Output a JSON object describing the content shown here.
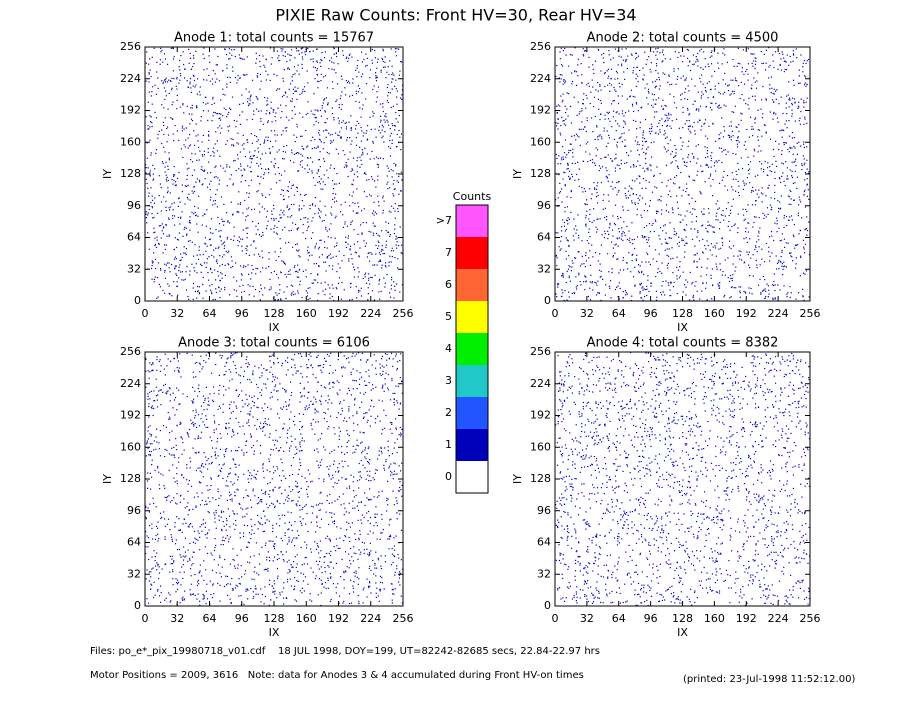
{
  "title": "PIXIE Raw Counts:  Front HV=30, Rear HV=34",
  "chart_data": [
    {
      "type": "heatmap",
      "title": "Anode 1: total counts = 15767",
      "xlabel": "IX",
      "ylabel": "IY",
      "color": "#0000cc",
      "xlim": [
        0,
        256
      ],
      "ylim": [
        0,
        256
      ],
      "xticks": [
        0,
        32,
        64,
        96,
        128,
        160,
        192,
        224,
        256
      ],
      "yticks": [
        0,
        32,
        64,
        96,
        128,
        160,
        192,
        224,
        256
      ]
    },
    {
      "type": "heatmap",
      "title": "Anode 2: total counts = 4500",
      "xlabel": "IX",
      "ylabel": "IY",
      "color": "#0000cc",
      "xlim": [
        0,
        256
      ],
      "ylim": [
        0,
        256
      ],
      "xticks": [
        0,
        32,
        64,
        96,
        128,
        160,
        192,
        224,
        256
      ],
      "yticks": [
        0,
        32,
        64,
        96,
        128,
        160,
        192,
        224,
        256
      ]
    },
    {
      "type": "heatmap",
      "title": "Anode 3: total counts = 6106",
      "xlabel": "IX",
      "ylabel": "IY",
      "color": "#0000cc",
      "xlim": [
        0,
        256
      ],
      "ylim": [
        0,
        256
      ],
      "xticks": [
        0,
        32,
        64,
        96,
        128,
        160,
        192,
        224,
        256
      ],
      "yticks": [
        0,
        32,
        64,
        96,
        128,
        160,
        192,
        224,
        256
      ]
    },
    {
      "type": "heatmap",
      "title": "Anode 4: total counts = 8382",
      "xlabel": "IX",
      "ylabel": "IY",
      "color": "#0000cc",
      "xlim": [
        0,
        256
      ],
      "ylim": [
        0,
        256
      ],
      "xticks": [
        0,
        32,
        64,
        96,
        128,
        160,
        192,
        224,
        256
      ],
      "yticks": [
        0,
        32,
        64,
        96,
        128,
        160,
        192,
        224,
        256
      ]
    }
  ],
  "colorbar": {
    "title": "Counts",
    "labels": [
      "0",
      "1",
      "2",
      "3",
      "4",
      "5",
      "6",
      "7",
      ">7"
    ],
    "colors": [
      "#ffffff",
      "#0000bb",
      "#2255ff",
      "#22c8c8",
      "#00ee00",
      "#ffff00",
      "#ff6633",
      "#ff0000",
      "#ff55ff"
    ]
  },
  "footer": {
    "files": "Files: po_e*_pix_19980718_v01.cdf    18 JUL 1998, DOY=199, UT=82242-82685 secs, 22.84-22.97 hrs",
    "motor": "Motor Positions = 2009, 3616   Note: data for Anodes 3 & 4 accumulated during Front HV-on times",
    "printed": "(printed: 23-Jul-1998 11:52:12.00)"
  }
}
